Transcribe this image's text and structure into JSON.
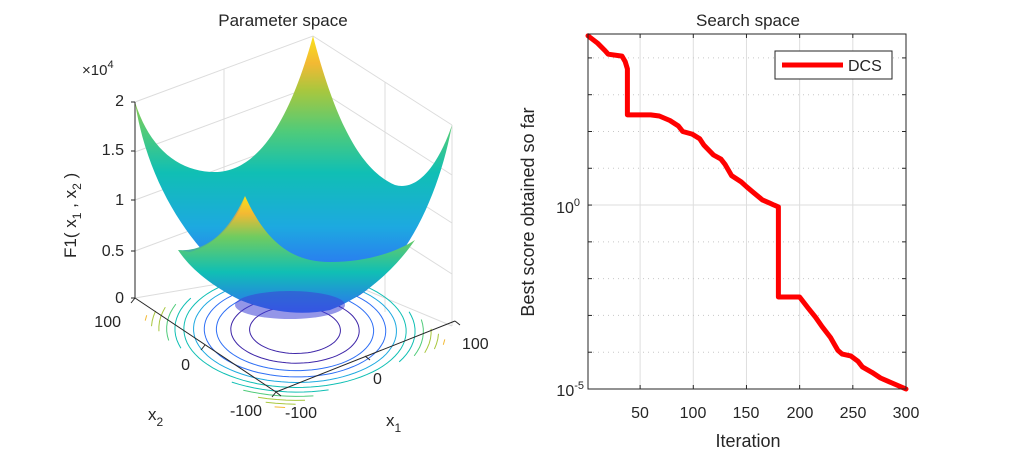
{
  "chart_data": [
    {
      "type": "surface",
      "title": "Parameter space",
      "function": "F1",
      "zlabel_main": "F1( x",
      "zlabel_sub1": "1",
      "zlabel_sep": " , x",
      "zlabel_sub2": "2",
      "zlabel_close": " )",
      "xlabel_main": "x",
      "xlabel_sub": "1",
      "ylabel_main": "x",
      "ylabel_sub": "2",
      "z_exponent_prefix": "×10",
      "z_exponent_power": "4",
      "z_ticks": [
        "0",
        "0.5",
        "1",
        "1.5",
        "2"
      ],
      "z_tick_values": [
        0,
        5000,
        10000,
        15000,
        20000
      ],
      "x_ticks": [
        "-100",
        "0",
        "100"
      ],
      "y_ticks": [
        "-100",
        "0",
        "100"
      ],
      "xlim": [
        -100,
        100
      ],
      "ylim": [
        -100,
        100
      ],
      "zlim": [
        0,
        20000
      ],
      "colormap": [
        "#3e26a8",
        "#2e6ff5",
        "#1da9e0",
        "#10bfb4",
        "#4fcb7a",
        "#a8c73e",
        "#f3b933",
        "#f9e11a"
      ],
      "contour_levels": 12
    },
    {
      "type": "line",
      "title": "Search space",
      "xlabel": "Iteration",
      "ylabel": "Best score obtained so far",
      "yscale": "log",
      "xlim": [
        1,
        300
      ],
      "ylim_log10": [
        -5,
        4.65
      ],
      "x_ticks": [
        "50",
        "100",
        "150",
        "200",
        "250",
        "300"
      ],
      "x_tick_values": [
        50,
        100,
        150,
        200,
        250,
        300
      ],
      "y_ticks": [
        {
          "base": "10",
          "exp": "0",
          "log10": 0
        },
        {
          "base": "10",
          "exp": "-5",
          "log10": -5
        }
      ],
      "grid": true,
      "legend_position": "top-right",
      "series": [
        {
          "name": "DCS",
          "color": "#ff0000",
          "x": [
            1,
            10,
            17,
            20,
            33,
            36,
            38,
            38,
            60,
            68,
            78,
            86,
            90,
            99,
            106,
            110,
            119,
            126,
            130,
            136,
            145,
            150,
            157,
            165,
            172,
            176,
            180,
            180,
            194,
            200,
            208,
            215,
            221,
            229,
            233,
            236,
            240,
            248,
            255,
            259,
            268,
            276,
            288,
            300
          ],
          "log10_y": [
            4.6,
            4.4,
            4.2,
            4.1,
            4.05,
            3.9,
            3.7,
            2.45,
            2.45,
            2.42,
            2.3,
            2.15,
            2.0,
            1.93,
            1.8,
            1.63,
            1.36,
            1.25,
            1.1,
            0.8,
            0.63,
            0.5,
            0.33,
            0.14,
            0.05,
            0.0,
            -0.05,
            -2.5,
            -2.5,
            -2.5,
            -2.8,
            -3.05,
            -3.3,
            -3.6,
            -3.8,
            -3.95,
            -4.05,
            -4.1,
            -4.25,
            -4.4,
            -4.55,
            -4.7,
            -4.85,
            -5.0
          ]
        }
      ]
    }
  ]
}
